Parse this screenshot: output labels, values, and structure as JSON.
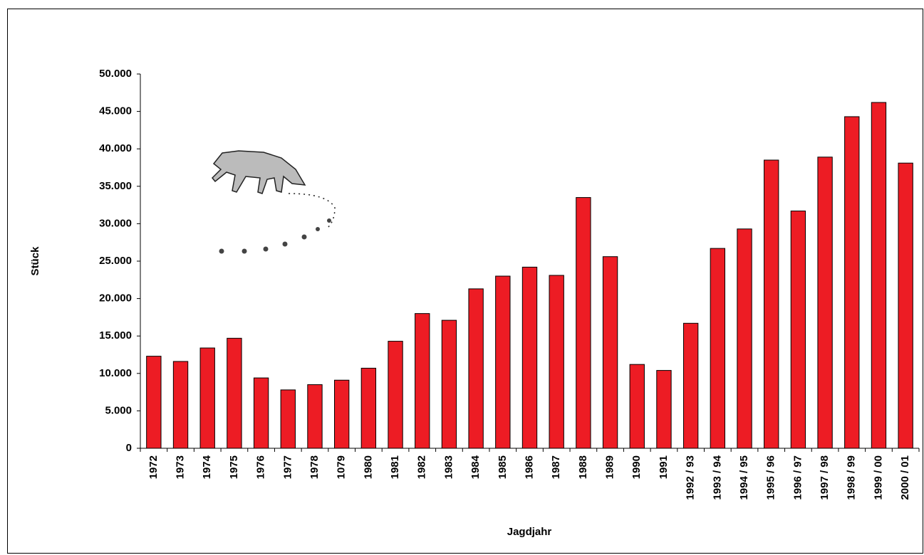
{
  "chart_data": {
    "type": "bar",
    "categories": [
      "1972",
      "1973",
      "1974",
      "1975",
      "1976",
      "1977",
      "1978",
      "1079",
      "1980",
      "1981",
      "1982",
      "1983",
      "1984",
      "1985",
      "1986",
      "1987",
      "1988",
      "1989",
      "1990",
      "1991",
      "1992 / 93",
      "1993 / 94",
      "1994 / 95",
      "1995 / 96",
      "1996 / 97",
      "1997 / 98",
      "1998 / 99",
      "1999 / 00",
      "2000 / 01"
    ],
    "values": [
      12300,
      11600,
      13400,
      14700,
      9400,
      7800,
      8500,
      9100,
      10700,
      14300,
      18000,
      17100,
      21300,
      23000,
      24200,
      23100,
      33500,
      25600,
      11200,
      10400,
      16700,
      26700,
      29300,
      38500,
      31700,
      38900,
      44300,
      46200,
      38100
    ],
    "color": "#ed1c24",
    "ylim": [
      0,
      50000
    ],
    "yticks": [
      0,
      {
        "value": 5000,
        "label": "5.000"
      },
      {
        "value": 10000,
        "label": "10.000"
      },
      {
        "value": 15000,
        "label": "15.000"
      },
      {
        "value": 20000,
        "label": "20.000"
      },
      {
        "value": 25000,
        "label": "25.000"
      },
      {
        "value": 30000,
        "label": "30.000"
      },
      {
        "value": 35000,
        "label": "35.000"
      },
      {
        "value": 40000,
        "label": "40.000"
      },
      {
        "value": 45000,
        "label": "45.000"
      },
      {
        "value": 50000,
        "label": "50.000"
      }
    ],
    "y_label": "Stück",
    "x_label": "Jagdjahr"
  }
}
